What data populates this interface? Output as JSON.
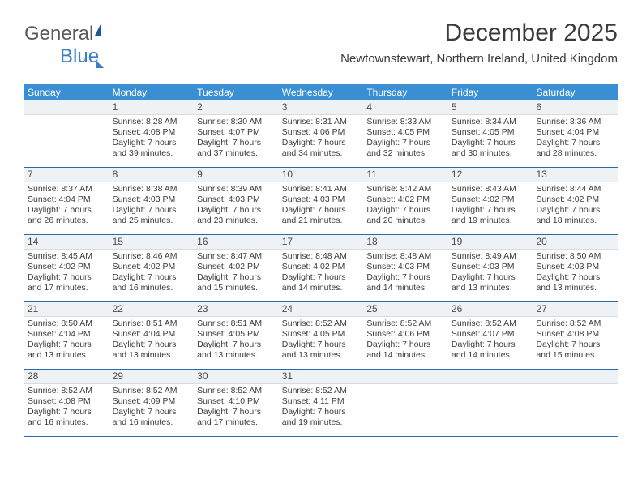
{
  "logo": {
    "part1": "General",
    "part2": "Blue"
  },
  "title": "December 2025",
  "location": "Newtownstewart, Northern Ireland, United Kingdom",
  "dayNames": [
    "Sunday",
    "Monday",
    "Tuesday",
    "Wednesday",
    "Thursday",
    "Friday",
    "Saturday"
  ],
  "colors": {
    "headerBlue": "#3a8fd4",
    "rowBorder": "#2a6aa8",
    "daynumBg": "#eff2f4",
    "text": "#3c3c3c"
  },
  "weeks": [
    [
      {
        "n": "",
        "sr": "",
        "ss": "",
        "dl": ""
      },
      {
        "n": "1",
        "sr": "Sunrise: 8:28 AM",
        "ss": "Sunset: 4:08 PM",
        "dl": "Daylight: 7 hours and 39 minutes."
      },
      {
        "n": "2",
        "sr": "Sunrise: 8:30 AM",
        "ss": "Sunset: 4:07 PM",
        "dl": "Daylight: 7 hours and 37 minutes."
      },
      {
        "n": "3",
        "sr": "Sunrise: 8:31 AM",
        "ss": "Sunset: 4:06 PM",
        "dl": "Daylight: 7 hours and 34 minutes."
      },
      {
        "n": "4",
        "sr": "Sunrise: 8:33 AM",
        "ss": "Sunset: 4:05 PM",
        "dl": "Daylight: 7 hours and 32 minutes."
      },
      {
        "n": "5",
        "sr": "Sunrise: 8:34 AM",
        "ss": "Sunset: 4:05 PM",
        "dl": "Daylight: 7 hours and 30 minutes."
      },
      {
        "n": "6",
        "sr": "Sunrise: 8:36 AM",
        "ss": "Sunset: 4:04 PM",
        "dl": "Daylight: 7 hours and 28 minutes."
      }
    ],
    [
      {
        "n": "7",
        "sr": "Sunrise: 8:37 AM",
        "ss": "Sunset: 4:04 PM",
        "dl": "Daylight: 7 hours and 26 minutes."
      },
      {
        "n": "8",
        "sr": "Sunrise: 8:38 AM",
        "ss": "Sunset: 4:03 PM",
        "dl": "Daylight: 7 hours and 25 minutes."
      },
      {
        "n": "9",
        "sr": "Sunrise: 8:39 AM",
        "ss": "Sunset: 4:03 PM",
        "dl": "Daylight: 7 hours and 23 minutes."
      },
      {
        "n": "10",
        "sr": "Sunrise: 8:41 AM",
        "ss": "Sunset: 4:03 PM",
        "dl": "Daylight: 7 hours and 21 minutes."
      },
      {
        "n": "11",
        "sr": "Sunrise: 8:42 AM",
        "ss": "Sunset: 4:02 PM",
        "dl": "Daylight: 7 hours and 20 minutes."
      },
      {
        "n": "12",
        "sr": "Sunrise: 8:43 AM",
        "ss": "Sunset: 4:02 PM",
        "dl": "Daylight: 7 hours and 19 minutes."
      },
      {
        "n": "13",
        "sr": "Sunrise: 8:44 AM",
        "ss": "Sunset: 4:02 PM",
        "dl": "Daylight: 7 hours and 18 minutes."
      }
    ],
    [
      {
        "n": "14",
        "sr": "Sunrise: 8:45 AM",
        "ss": "Sunset: 4:02 PM",
        "dl": "Daylight: 7 hours and 17 minutes."
      },
      {
        "n": "15",
        "sr": "Sunrise: 8:46 AM",
        "ss": "Sunset: 4:02 PM",
        "dl": "Daylight: 7 hours and 16 minutes."
      },
      {
        "n": "16",
        "sr": "Sunrise: 8:47 AM",
        "ss": "Sunset: 4:02 PM",
        "dl": "Daylight: 7 hours and 15 minutes."
      },
      {
        "n": "17",
        "sr": "Sunrise: 8:48 AM",
        "ss": "Sunset: 4:02 PM",
        "dl": "Daylight: 7 hours and 14 minutes."
      },
      {
        "n": "18",
        "sr": "Sunrise: 8:48 AM",
        "ss": "Sunset: 4:03 PM",
        "dl": "Daylight: 7 hours and 14 minutes."
      },
      {
        "n": "19",
        "sr": "Sunrise: 8:49 AM",
        "ss": "Sunset: 4:03 PM",
        "dl": "Daylight: 7 hours and 13 minutes."
      },
      {
        "n": "20",
        "sr": "Sunrise: 8:50 AM",
        "ss": "Sunset: 4:03 PM",
        "dl": "Daylight: 7 hours and 13 minutes."
      }
    ],
    [
      {
        "n": "21",
        "sr": "Sunrise: 8:50 AM",
        "ss": "Sunset: 4:04 PM",
        "dl": "Daylight: 7 hours and 13 minutes."
      },
      {
        "n": "22",
        "sr": "Sunrise: 8:51 AM",
        "ss": "Sunset: 4:04 PM",
        "dl": "Daylight: 7 hours and 13 minutes."
      },
      {
        "n": "23",
        "sr": "Sunrise: 8:51 AM",
        "ss": "Sunset: 4:05 PM",
        "dl": "Daylight: 7 hours and 13 minutes."
      },
      {
        "n": "24",
        "sr": "Sunrise: 8:52 AM",
        "ss": "Sunset: 4:05 PM",
        "dl": "Daylight: 7 hours and 13 minutes."
      },
      {
        "n": "25",
        "sr": "Sunrise: 8:52 AM",
        "ss": "Sunset: 4:06 PM",
        "dl": "Daylight: 7 hours and 14 minutes."
      },
      {
        "n": "26",
        "sr": "Sunrise: 8:52 AM",
        "ss": "Sunset: 4:07 PM",
        "dl": "Daylight: 7 hours and 14 minutes."
      },
      {
        "n": "27",
        "sr": "Sunrise: 8:52 AM",
        "ss": "Sunset: 4:08 PM",
        "dl": "Daylight: 7 hours and 15 minutes."
      }
    ],
    [
      {
        "n": "28",
        "sr": "Sunrise: 8:52 AM",
        "ss": "Sunset: 4:08 PM",
        "dl": "Daylight: 7 hours and 16 minutes."
      },
      {
        "n": "29",
        "sr": "Sunrise: 8:52 AM",
        "ss": "Sunset: 4:09 PM",
        "dl": "Daylight: 7 hours and 16 minutes."
      },
      {
        "n": "30",
        "sr": "Sunrise: 8:52 AM",
        "ss": "Sunset: 4:10 PM",
        "dl": "Daylight: 7 hours and 17 minutes."
      },
      {
        "n": "31",
        "sr": "Sunrise: 8:52 AM",
        "ss": "Sunset: 4:11 PM",
        "dl": "Daylight: 7 hours and 19 minutes."
      },
      {
        "n": "",
        "sr": "",
        "ss": "",
        "dl": ""
      },
      {
        "n": "",
        "sr": "",
        "ss": "",
        "dl": ""
      },
      {
        "n": "",
        "sr": "",
        "ss": "",
        "dl": ""
      }
    ]
  ]
}
